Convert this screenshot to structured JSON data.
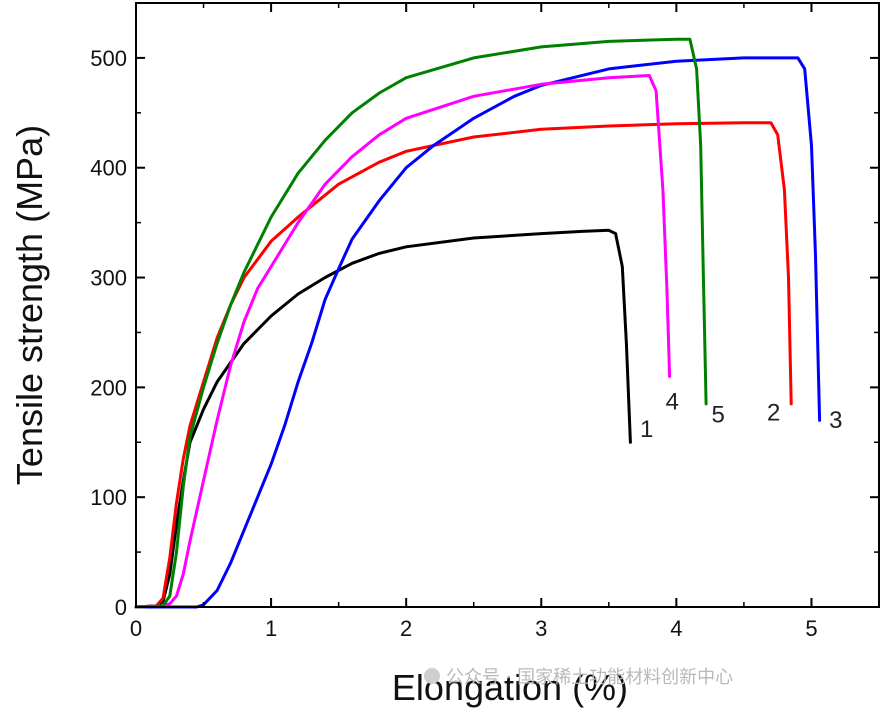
{
  "chart_data": {
    "type": "line",
    "xlabel": "Elongation (%)",
    "ylabel": "Tensile strength (MPa)",
    "xlim": [
      0,
      5.5
    ],
    "ylim": [
      0,
      550
    ],
    "xticks": [
      0,
      1,
      2,
      3,
      4,
      5
    ],
    "yticks": [
      0,
      100,
      200,
      300,
      400,
      500
    ],
    "grid": false,
    "legend": "none",
    "series": [
      {
        "name": "1",
        "color": "#000000",
        "points": [
          [
            0.0,
            0
          ],
          [
            0.15,
            1
          ],
          [
            0.2,
            5
          ],
          [
            0.25,
            30
          ],
          [
            0.3,
            75
          ],
          [
            0.35,
            115
          ],
          [
            0.4,
            150
          ],
          [
            0.5,
            180
          ],
          [
            0.6,
            205
          ],
          [
            0.8,
            240
          ],
          [
            1.0,
            265
          ],
          [
            1.2,
            285
          ],
          [
            1.4,
            300
          ],
          [
            1.6,
            313
          ],
          [
            1.8,
            322
          ],
          [
            2.0,
            328
          ],
          [
            2.5,
            336
          ],
          [
            3.0,
            340
          ],
          [
            3.3,
            342
          ],
          [
            3.5,
            343
          ],
          [
            3.55,
            340
          ],
          [
            3.6,
            310
          ],
          [
            3.63,
            240
          ],
          [
            3.66,
            150
          ]
        ]
      },
      {
        "name": "2",
        "color": "#ff0000",
        "points": [
          [
            0.0,
            0
          ],
          [
            0.15,
            1
          ],
          [
            0.2,
            8
          ],
          [
            0.25,
            45
          ],
          [
            0.3,
            95
          ],
          [
            0.35,
            135
          ],
          [
            0.4,
            165
          ],
          [
            0.5,
            205
          ],
          [
            0.6,
            245
          ],
          [
            0.7,
            275
          ],
          [
            0.8,
            300
          ],
          [
            1.0,
            333
          ],
          [
            1.2,
            355
          ],
          [
            1.5,
            385
          ],
          [
            1.8,
            405
          ],
          [
            2.0,
            415
          ],
          [
            2.5,
            428
          ],
          [
            3.0,
            435
          ],
          [
            3.5,
            438
          ],
          [
            4.0,
            440
          ],
          [
            4.5,
            441
          ],
          [
            4.7,
            441
          ],
          [
            4.75,
            430
          ],
          [
            4.8,
            380
          ],
          [
            4.83,
            300
          ],
          [
            4.85,
            185
          ]
        ]
      },
      {
        "name": "3",
        "color": "#0000ff",
        "points": [
          [
            0.0,
            0
          ],
          [
            0.45,
            0
          ],
          [
            0.5,
            2
          ],
          [
            0.6,
            15
          ],
          [
            0.7,
            40
          ],
          [
            0.8,
            70
          ],
          [
            0.9,
            100
          ],
          [
            1.0,
            130
          ],
          [
            1.1,
            165
          ],
          [
            1.2,
            205
          ],
          [
            1.3,
            240
          ],
          [
            1.4,
            280
          ],
          [
            1.5,
            308
          ],
          [
            1.6,
            335
          ],
          [
            1.8,
            370
          ],
          [
            2.0,
            400
          ],
          [
            2.2,
            420
          ],
          [
            2.5,
            445
          ],
          [
            2.8,
            465
          ],
          [
            3.0,
            475
          ],
          [
            3.5,
            490
          ],
          [
            4.0,
            497
          ],
          [
            4.5,
            500
          ],
          [
            4.9,
            500
          ],
          [
            4.95,
            490
          ],
          [
            5.0,
            420
          ],
          [
            5.03,
            320
          ],
          [
            5.06,
            170
          ]
        ]
      },
      {
        "name": "4",
        "color": "#ff00ff",
        "points": [
          [
            0.0,
            0
          ],
          [
            0.2,
            1
          ],
          [
            0.25,
            3
          ],
          [
            0.3,
            10
          ],
          [
            0.35,
            30
          ],
          [
            0.4,
            60
          ],
          [
            0.5,
            115
          ],
          [
            0.6,
            170
          ],
          [
            0.7,
            220
          ],
          [
            0.8,
            260
          ],
          [
            0.9,
            290
          ],
          [
            1.0,
            310
          ],
          [
            1.2,
            350
          ],
          [
            1.4,
            385
          ],
          [
            1.6,
            410
          ],
          [
            1.8,
            430
          ],
          [
            2.0,
            445
          ],
          [
            2.5,
            465
          ],
          [
            3.0,
            476
          ],
          [
            3.5,
            482
          ],
          [
            3.8,
            484
          ],
          [
            3.85,
            470
          ],
          [
            3.9,
            380
          ],
          [
            3.93,
            290
          ],
          [
            3.95,
            210
          ]
        ]
      },
      {
        "name": "5",
        "color": "#008000",
        "points": [
          [
            0.0,
            0
          ],
          [
            0.2,
            1
          ],
          [
            0.25,
            10
          ],
          [
            0.3,
            50
          ],
          [
            0.35,
            110
          ],
          [
            0.4,
            155
          ],
          [
            0.5,
            200
          ],
          [
            0.6,
            240
          ],
          [
            0.7,
            275
          ],
          [
            0.8,
            305
          ],
          [
            1.0,
            355
          ],
          [
            1.2,
            395
          ],
          [
            1.4,
            425
          ],
          [
            1.6,
            450
          ],
          [
            1.8,
            468
          ],
          [
            2.0,
            482
          ],
          [
            2.5,
            500
          ],
          [
            3.0,
            510
          ],
          [
            3.5,
            515
          ],
          [
            4.0,
            517
          ],
          [
            4.1,
            517
          ],
          [
            4.15,
            490
          ],
          [
            4.18,
            420
          ],
          [
            4.2,
            300
          ],
          [
            4.22,
            185
          ]
        ]
      }
    ],
    "curve_labels": [
      {
        "text": "1",
        "x": 3.78,
        "y": 155
      },
      {
        "text": "4",
        "x": 3.97,
        "y": 180
      },
      {
        "text": "5",
        "x": 4.31,
        "y": 168
      },
      {
        "text": "2",
        "x": 4.72,
        "y": 170
      },
      {
        "text": "3",
        "x": 5.18,
        "y": 163
      }
    ]
  },
  "watermark": "公众号 · 国家稀土功能材料创新中心"
}
